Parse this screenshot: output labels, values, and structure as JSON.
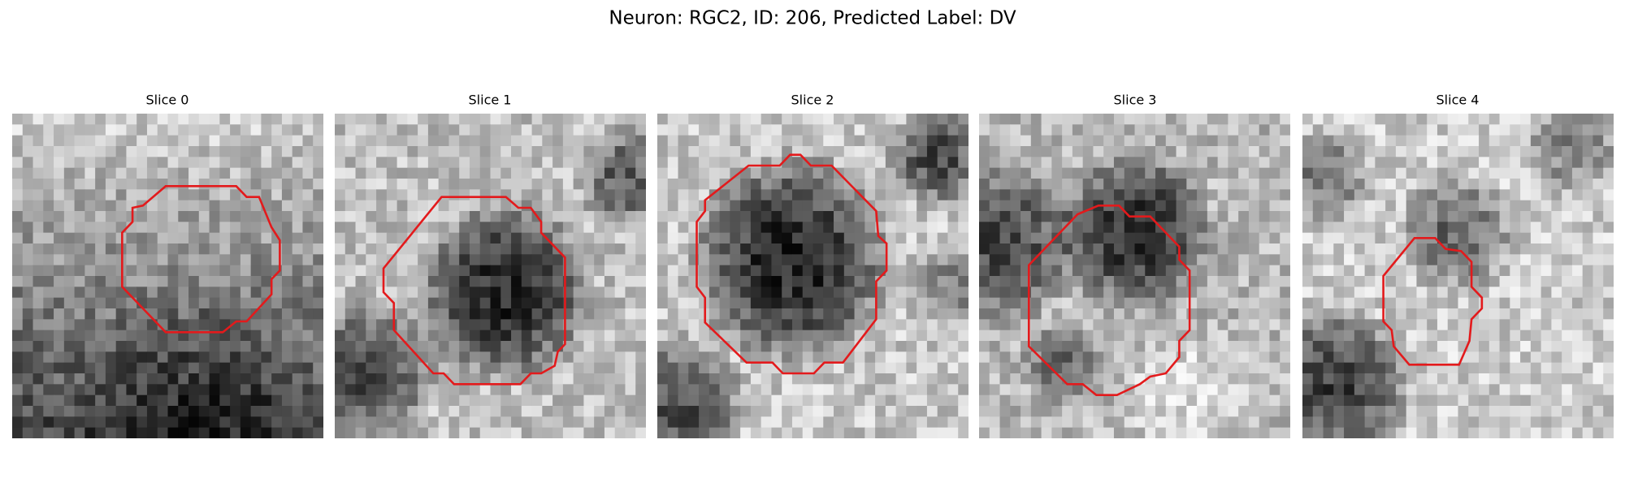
{
  "title": "Neuron: RGC2, ID: 206, Predicted Label: DV",
  "panels": [
    {
      "title": "Slice 0"
    },
    {
      "title": "Slice 1"
    },
    {
      "title": "Slice 2"
    },
    {
      "title": "Slice 3"
    },
    {
      "title": "Slice 4"
    }
  ]
}
